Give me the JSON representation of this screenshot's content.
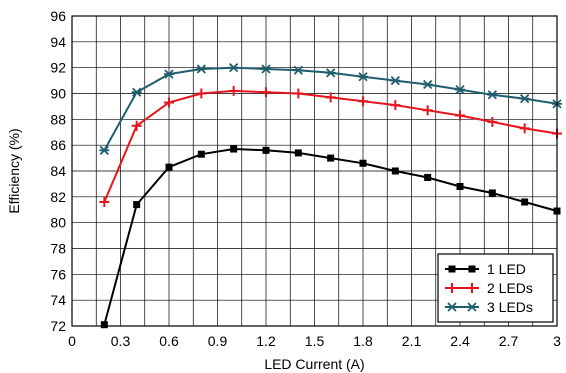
{
  "chart_data": {
    "type": "line",
    "title": "",
    "xlabel": "LED Current (A)",
    "ylabel": "Efficiency (%)",
    "xlim": [
      0,
      3
    ],
    "ylim": [
      72,
      96
    ],
    "xticks": [
      "0",
      "0.3",
      "0.6",
      "0.9",
      "1.2",
      "1.5",
      "1.8",
      "2.1",
      "2.4",
      "2.7",
      "3"
    ],
    "yticks": [
      "72",
      "74",
      "76",
      "78",
      "80",
      "82",
      "84",
      "86",
      "88",
      "90",
      "92",
      "94",
      "96"
    ],
    "grid": true,
    "legend_position": "bottom-right",
    "series": [
      {
        "name": "1 LED",
        "color": "#000000",
        "marker": "square",
        "x": [
          0.2,
          0.4,
          0.6,
          0.8,
          1.0,
          1.2,
          1.4,
          1.6,
          1.8,
          2.0,
          2.2,
          2.4,
          2.6,
          2.8,
          3.0
        ],
        "values": [
          72.1,
          81.4,
          84.3,
          85.3,
          85.7,
          85.6,
          85.4,
          85.0,
          84.6,
          84.0,
          83.5,
          82.8,
          82.3,
          81.6,
          80.9
        ]
      },
      {
        "name": "2 LEDs",
        "color": "#e8141b",
        "marker": "plus",
        "x": [
          0.2,
          0.4,
          0.6,
          0.8,
          1.0,
          1.2,
          1.4,
          1.6,
          1.8,
          2.0,
          2.2,
          2.4,
          2.6,
          2.8,
          3.0
        ],
        "values": [
          81.6,
          87.5,
          89.3,
          90.0,
          90.2,
          90.1,
          90.0,
          89.7,
          89.4,
          89.1,
          88.7,
          88.3,
          87.8,
          87.3,
          86.9
        ]
      },
      {
        "name": "3 LEDs",
        "color": "#1f5e6e",
        "marker": "star",
        "x": [
          0.2,
          0.4,
          0.6,
          0.8,
          1.0,
          1.2,
          1.4,
          1.6,
          1.8,
          2.0,
          2.2,
          2.4,
          2.6,
          2.8,
          3.0
        ],
        "values": [
          85.6,
          90.1,
          91.5,
          91.9,
          92.0,
          91.9,
          91.8,
          91.6,
          91.3,
          91.0,
          90.7,
          90.3,
          89.9,
          89.6,
          89.2
        ]
      }
    ]
  }
}
